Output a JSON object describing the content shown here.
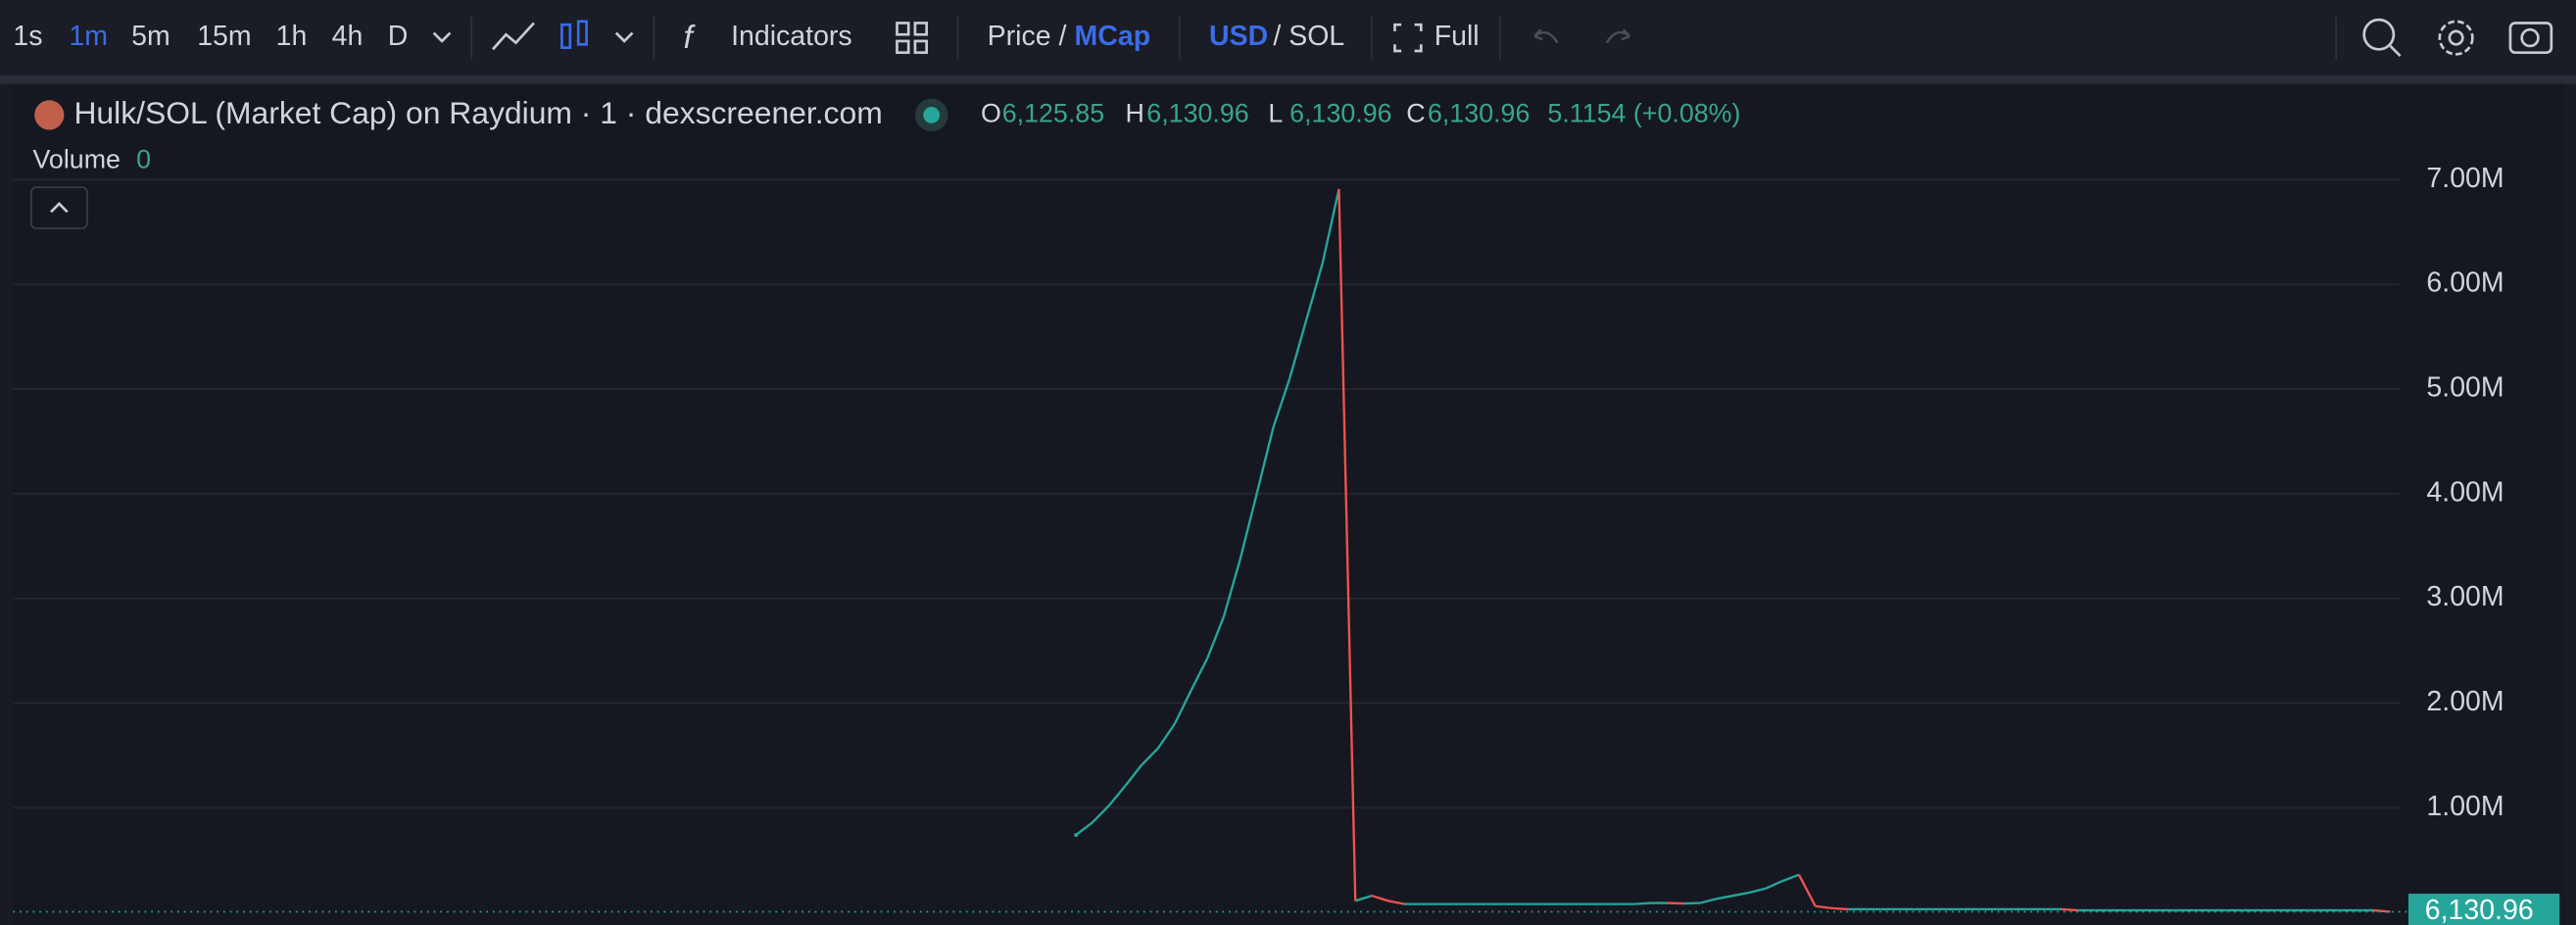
{
  "toolbar": {
    "intervals": [
      "1s",
      "1m",
      "5m",
      "15m",
      "1h",
      "4h",
      "D"
    ],
    "active_interval": 1,
    "indicators": "Indicators",
    "price": "Price /",
    "mcap": "MCap",
    "usd": "USD",
    "sol": "/ SOL",
    "full": "Full"
  },
  "legend": {
    "title": "Hulk/SOL (Market Cap) on Raydium · 1 · dexscreener.com",
    "ohlc": [
      {
        "key": "O",
        "value": "6,125.85"
      },
      {
        "key": "H",
        "value": "6,130.96"
      },
      {
        "key": "L",
        "value": "6,130.96"
      },
      {
        "key": "C",
        "value": "6,130.96"
      }
    ],
    "change": "5.1154 (+0.08%)",
    "volume": "Volume",
    "volume_value": "0"
  },
  "chart_data": {
    "type": "line",
    "up_color": "#26a69a",
    "down_color": "#ef5350",
    "values": [
      740000,
      860000,
      1020000,
      1210000,
      1410000,
      1570000,
      1800000,
      2120000,
      2430000,
      2830000,
      3380000,
      4000000,
      4630000,
      5100000,
      5650000,
      6200000,
      6910000,
      110000,
      160000,
      110000,
      80000,
      80000,
      80000,
      80000,
      80000,
      80000,
      80000,
      80000,
      80000,
      80000,
      80000,
      80000,
      80000,
      80000,
      80000,
      90000,
      90000,
      85000,
      90000,
      130000,
      160000,
      190000,
      230000,
      300000,
      360000,
      60000,
      40000,
      30000,
      30000,
      30000,
      30000,
      30000,
      30000,
      30000,
      30000,
      30000,
      30000,
      30000,
      30000,
      30000,
      30000,
      20000,
      20000,
      20000,
      20000,
      20000,
      20000,
      20000,
      20000,
      20000,
      20000,
      20000,
      20000,
      20000,
      20000,
      20000,
      20000,
      20000,
      20000,
      20000,
      6130.96
    ],
    "last_value_label": "6,130.96",
    "ylim": [
      -120000,
      7900000
    ],
    "yticks": [
      {
        "value": 1000000,
        "label": "1.00M"
      },
      {
        "value": 2000000,
        "label": "2.00M"
      },
      {
        "value": 3000000,
        "label": "3.00M"
      },
      {
        "value": 4000000,
        "label": "4.00M"
      },
      {
        "value": 5000000,
        "label": "5.00M"
      },
      {
        "value": 6000000,
        "label": "6.00M"
      },
      {
        "value": 7000000,
        "label": "7.00M"
      }
    ]
  }
}
